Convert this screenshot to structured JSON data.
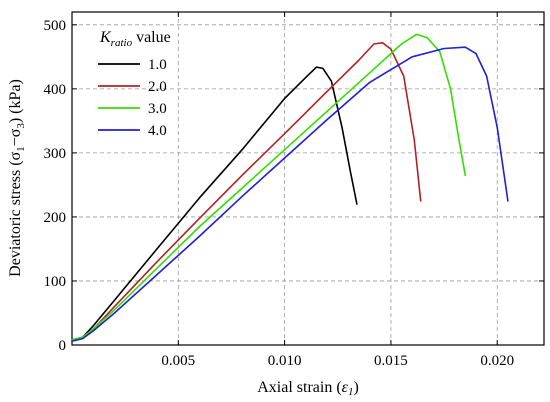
{
  "chart_data": {
    "type": "line",
    "xlabel_prefix": "Axial strain (",
    "xlabel_symbol": "ε",
    "xlabel_subscript": "1",
    "xlabel_suffix": ")",
    "ylabel_prefix": "Deviatoric stress (σ",
    "ylabel_sub1": "1",
    "ylabel_mid": "−σ",
    "ylabel_sub3": "3",
    "ylabel_suffix": ") (kPa)",
    "legend_title_symbol": "K",
    "legend_title_subscript": "ratio",
    "legend_title_suffix": " value",
    "legend_position": "top-left",
    "grid": true,
    "xlim": [
      0,
      0.0222
    ],
    "ylim": [
      0,
      520
    ],
    "xticks": [
      0.005,
      0.01,
      0.015,
      0.02
    ],
    "xtick_labels": [
      "0.005",
      "0.010",
      "0.015",
      "0.020"
    ],
    "yticks": [
      0,
      100,
      200,
      300,
      400,
      500
    ],
    "ytick_labels": [
      "0",
      "100",
      "200",
      "300",
      "400",
      "500"
    ],
    "series": [
      {
        "name": "1.0",
        "color": "#000000",
        "points": [
          [
            0,
            8
          ],
          [
            0.0005,
            12
          ],
          [
            0.001,
            30
          ],
          [
            0.002,
            70
          ],
          [
            0.004,
            150
          ],
          [
            0.006,
            230
          ],
          [
            0.008,
            305
          ],
          [
            0.01,
            385
          ],
          [
            0.011,
            418
          ],
          [
            0.0115,
            434
          ],
          [
            0.0118,
            432
          ],
          [
            0.0122,
            412
          ],
          [
            0.0127,
            340
          ],
          [
            0.0131,
            270
          ],
          [
            0.0134,
            220
          ]
        ]
      },
      {
        "name": "2.0",
        "color": "#b22222",
        "points": [
          [
            0,
            8
          ],
          [
            0.0005,
            12
          ],
          [
            0.001,
            25
          ],
          [
            0.002,
            60
          ],
          [
            0.004,
            130
          ],
          [
            0.006,
            198
          ],
          [
            0.008,
            265
          ],
          [
            0.01,
            330
          ],
          [
            0.012,
            396
          ],
          [
            0.0135,
            445
          ],
          [
            0.0142,
            470
          ],
          [
            0.0146,
            472
          ],
          [
            0.015,
            462
          ],
          [
            0.0156,
            420
          ],
          [
            0.0161,
            320
          ],
          [
            0.0164,
            225
          ]
        ]
      },
      {
        "name": "3.0",
        "color": "#33dd00",
        "points": [
          [
            0,
            8
          ],
          [
            0.0005,
            12
          ],
          [
            0.001,
            25
          ],
          [
            0.002,
            55
          ],
          [
            0.004,
            120
          ],
          [
            0.006,
            185
          ],
          [
            0.008,
            245
          ],
          [
            0.01,
            305
          ],
          [
            0.012,
            365
          ],
          [
            0.014,
            425
          ],
          [
            0.0155,
            470
          ],
          [
            0.0162,
            485
          ],
          [
            0.0167,
            480
          ],
          [
            0.0173,
            458
          ],
          [
            0.0178,
            400
          ],
          [
            0.0182,
            320
          ],
          [
            0.0185,
            265
          ]
        ]
      },
      {
        "name": "4.0",
        "color": "#1f1fd6",
        "points": [
          [
            0,
            6
          ],
          [
            0.0005,
            10
          ],
          [
            0.001,
            22
          ],
          [
            0.002,
            50
          ],
          [
            0.004,
            110
          ],
          [
            0.006,
            170
          ],
          [
            0.008,
            232
          ],
          [
            0.01,
            292
          ],
          [
            0.012,
            352
          ],
          [
            0.014,
            410
          ],
          [
            0.016,
            450
          ],
          [
            0.0175,
            463
          ],
          [
            0.0185,
            465
          ],
          [
            0.019,
            455
          ],
          [
            0.0195,
            420
          ],
          [
            0.02,
            340
          ],
          [
            0.0205,
            225
          ]
        ]
      }
    ]
  }
}
